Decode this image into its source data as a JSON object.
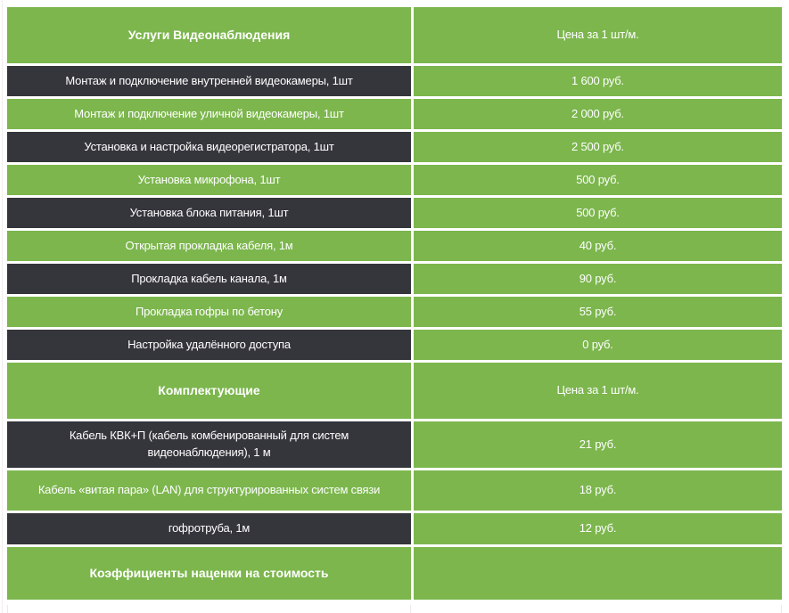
{
  "colors": {
    "green": "#7cb64d",
    "dark": "#35353c",
    "text": "#ffffff"
  },
  "sections": [
    {
      "title": "Услуги Видеонаблюдения",
      "price_label": "Цена за 1 шт/м.",
      "rows": [
        {
          "service": "Монтаж и подключение внутренней видеокамеры, 1шт",
          "price": "1 600 руб."
        },
        {
          "service": "Монтаж и подключение уличной видеокамеры, 1шт",
          "price": "2 000 руб."
        },
        {
          "service": "Установка и настройка видеорегистратора, 1шт",
          "price": "2 500 руб."
        },
        {
          "service": "Установка микрофона, 1шт",
          "price": "500 руб."
        },
        {
          "service": "Установка блока питания, 1шт",
          "price": "500 руб."
        },
        {
          "service": "Открытая прокладка кабеля, 1м",
          "price": "40 руб."
        },
        {
          "service": "Прокладка кабель канала, 1м",
          "price": "90 руб."
        },
        {
          "service": "Прокладка гофры по бетону",
          "price": "55 руб."
        },
        {
          "service": "Настройка удалённого доступа",
          "price": "0 руб."
        }
      ]
    },
    {
      "title": "Комплектующие",
      "price_label": "Цена за 1 шт/м.",
      "rows": [
        {
          "service": "Кабель КВК+П (кабель комбенированный для систем видеонаблюдения), 1 м",
          "price": "21 руб."
        },
        {
          "service": "Кабель «витая пара» (LAN) для структурированных систем связи",
          "price": "18 руб."
        },
        {
          "service": "гофротруба, 1м",
          "price": "12 руб."
        }
      ]
    },
    {
      "title": "Коэффициенты наценки на стоимость",
      "price_label": "",
      "rows": []
    }
  ]
}
